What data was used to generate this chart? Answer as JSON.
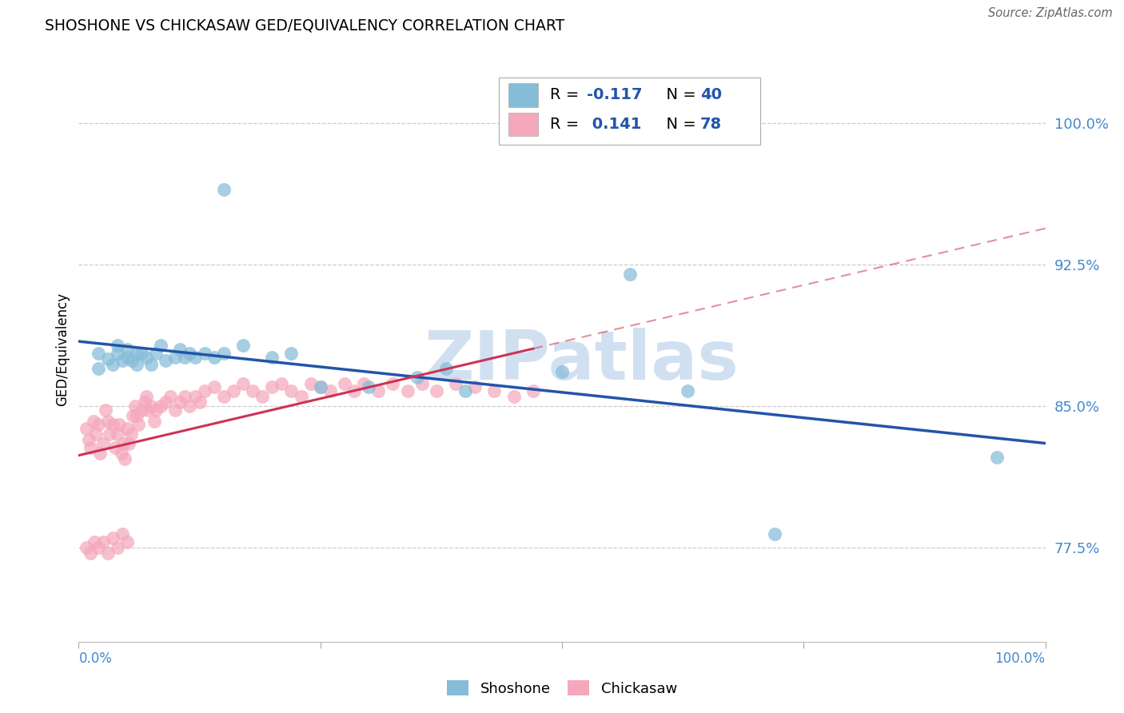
{
  "title": "SHOSHONE VS CHICKASAW GED/EQUIVALENCY CORRELATION CHART",
  "source": "Source: ZipAtlas.com",
  "ylabel": "GED/Equivalency",
  "ytick_vals": [
    0.775,
    0.85,
    0.925,
    1.0
  ],
  "ytick_labels": [
    "77.5%",
    "85.0%",
    "92.5%",
    "100.0%"
  ],
  "xmin": 0.0,
  "xmax": 1.0,
  "ymin": 0.725,
  "ymax": 1.035,
  "r_shoshone": "-0.117",
  "n_shoshone": "40",
  "r_chickasaw": "0.141",
  "n_chickasaw": "78",
  "shoshone_color": "#85bcd8",
  "chickasaw_color": "#f5a8bc",
  "shoshone_line_color": "#2255aa",
  "chickasaw_line_color": "#cc3355",
  "watermark_color": "#ccddf0",
  "shoshone_x": [
    0.02,
    0.02,
    0.03,
    0.035,
    0.04,
    0.04,
    0.045,
    0.05,
    0.05,
    0.055,
    0.06,
    0.06,
    0.065,
    0.07,
    0.075,
    0.08,
    0.085,
    0.09,
    0.1,
    0.105,
    0.11,
    0.115,
    0.12,
    0.13,
    0.14,
    0.15,
    0.17,
    0.2,
    0.22,
    0.25,
    0.3,
    0.35,
    0.38,
    0.5,
    0.57,
    0.63,
    0.72,
    0.95,
    0.15,
    0.4
  ],
  "shoshone_y": [
    0.87,
    0.878,
    0.875,
    0.872,
    0.878,
    0.882,
    0.874,
    0.876,
    0.88,
    0.874,
    0.878,
    0.872,
    0.878,
    0.876,
    0.872,
    0.878,
    0.882,
    0.874,
    0.876,
    0.88,
    0.876,
    0.878,
    0.876,
    0.878,
    0.876,
    0.878,
    0.882,
    0.876,
    0.878,
    0.86,
    0.86,
    0.865,
    0.87,
    0.868,
    0.92,
    0.858,
    0.782,
    0.823,
    0.965,
    0.858
  ],
  "chickasaw_x": [
    0.008,
    0.01,
    0.012,
    0.015,
    0.018,
    0.02,
    0.022,
    0.025,
    0.028,
    0.03,
    0.032,
    0.035,
    0.038,
    0.04,
    0.042,
    0.044,
    0.046,
    0.048,
    0.05,
    0.052,
    0.054,
    0.056,
    0.058,
    0.06,
    0.062,
    0.065,
    0.068,
    0.07,
    0.072,
    0.075,
    0.078,
    0.08,
    0.085,
    0.09,
    0.095,
    0.1,
    0.105,
    0.11,
    0.115,
    0.12,
    0.125,
    0.13,
    0.14,
    0.15,
    0.16,
    0.17,
    0.18,
    0.19,
    0.2,
    0.21,
    0.22,
    0.23,
    0.24,
    0.25,
    0.26,
    0.275,
    0.285,
    0.295,
    0.31,
    0.325,
    0.34,
    0.355,
    0.37,
    0.39,
    0.41,
    0.43,
    0.45,
    0.47,
    0.008,
    0.012,
    0.016,
    0.02,
    0.025,
    0.03,
    0.035,
    0.04,
    0.045,
    0.05
  ],
  "chickasaw_y": [
    0.838,
    0.832,
    0.828,
    0.842,
    0.835,
    0.84,
    0.825,
    0.83,
    0.848,
    0.842,
    0.835,
    0.84,
    0.828,
    0.835,
    0.84,
    0.825,
    0.83,
    0.822,
    0.838,
    0.83,
    0.835,
    0.845,
    0.85,
    0.845,
    0.84,
    0.848,
    0.852,
    0.855,
    0.848,
    0.85,
    0.842,
    0.848,
    0.85,
    0.852,
    0.855,
    0.848,
    0.852,
    0.855,
    0.85,
    0.855,
    0.852,
    0.858,
    0.86,
    0.855,
    0.858,
    0.862,
    0.858,
    0.855,
    0.86,
    0.862,
    0.858,
    0.855,
    0.862,
    0.86,
    0.858,
    0.862,
    0.858,
    0.862,
    0.858,
    0.862,
    0.858,
    0.862,
    0.858,
    0.862,
    0.86,
    0.858,
    0.855,
    0.858,
    0.775,
    0.772,
    0.778,
    0.775,
    0.778,
    0.772,
    0.78,
    0.775,
    0.782,
    0.778
  ]
}
